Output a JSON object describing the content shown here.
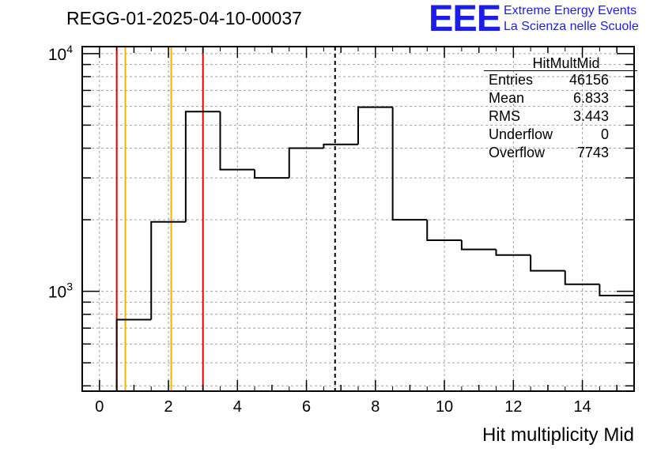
{
  "header": {
    "run_id": "REGG-01-2025-04-10-00037"
  },
  "logo": {
    "mark": "EEE",
    "line1": "Extreme Energy Events",
    "line2": "La Scienza nelle Scuole",
    "color": "#1d1de8"
  },
  "stats_box": {
    "title": "HitMultMid",
    "rows": [
      {
        "label": "Entries",
        "value": "46156"
      },
      {
        "label": "Mean",
        "value": "6.833"
      },
      {
        "label": "RMS",
        "value": "3.443"
      },
      {
        "label": "Underflow",
        "value": "0"
      },
      {
        "label": "Overflow",
        "value": "7743"
      }
    ]
  },
  "chart_data": {
    "type": "histogram",
    "xlabel": "Hit multiplicity Mid",
    "ylabel": "",
    "xlim": [
      -0.5,
      15.5
    ],
    "ylim": [
      380,
      10700
    ],
    "yscale": "log",
    "grid": true,
    "x_ticks": [
      "0",
      "2",
      "4",
      "6",
      "8",
      "10",
      "12",
      "14"
    ],
    "y_ticks": [
      {
        "base": "10",
        "exp": "3",
        "value": 1000
      },
      {
        "base": "10",
        "exp": "4",
        "value": 10000
      }
    ],
    "bins": {
      "x": [
        0,
        1,
        2,
        3,
        4,
        5,
        6,
        7,
        8,
        9,
        10,
        11,
        12,
        13,
        14,
        15
      ],
      "values": [
        0,
        760,
        1960,
        5700,
        3250,
        3000,
        4000,
        4150,
        5950,
        2000,
        1640,
        1500,
        1420,
        1220,
        1070,
        960
      ]
    },
    "reference_lines": [
      {
        "x": 0.5,
        "color": "#e00000",
        "style": "solid"
      },
      {
        "x": 0.75,
        "color": "#f0b400",
        "style": "solid"
      },
      {
        "x": 2.08,
        "color": "#f0b400",
        "style": "solid"
      },
      {
        "x": 3.0,
        "color": "#e00000",
        "style": "solid"
      },
      {
        "x": 6.83,
        "color": "#000000",
        "style": "dashed"
      }
    ],
    "colors": {
      "histogram": "#000000",
      "grid": "#a0a0a0"
    }
  }
}
